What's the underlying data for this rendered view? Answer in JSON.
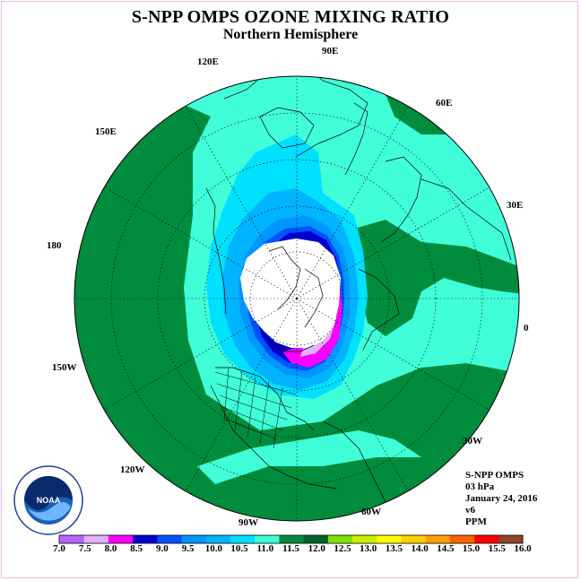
{
  "title": "S-NPP OMPS OZONE MIXING RATIO",
  "subtitle": "Northern Hemisphere",
  "longitude_labels": [
    {
      "text": "90E"
    },
    {
      "text": "60E"
    },
    {
      "text": "30E"
    },
    {
      "text": "0"
    },
    {
      "text": "30W"
    },
    {
      "text": "60W"
    },
    {
      "text": "90W"
    },
    {
      "text": "120W"
    },
    {
      "text": "150W"
    },
    {
      "text": "180"
    },
    {
      "text": "150E"
    },
    {
      "text": "120E"
    }
  ],
  "info": {
    "instrument": "S-NPP OMPS",
    "level": "03 hPa",
    "date": "January 24, 2016",
    "version": "v6",
    "units": "PPM"
  },
  "logo_text": "NOAA",
  "colorbar": {
    "ticks": [
      "7.0",
      "7.5",
      "8.0",
      "8.5",
      "9.0",
      "9.5",
      "10.0",
      "10.5",
      "11.0",
      "11.5",
      "12.0",
      "12.5",
      "13.0",
      "13.5",
      "14.0",
      "14.5",
      "15.0",
      "15.5",
      "16.0"
    ],
    "colors": [
      "#b266ff",
      "#e0b0ff",
      "#ff00ff",
      "#0000cc",
      "#0050ff",
      "#0096ff",
      "#00b4ff",
      "#00e0ff",
      "#40ffd8",
      "#008c3c",
      "#006428",
      "#80e000",
      "#c8f000",
      "#ffff00",
      "#ffd000",
      "#ffa000",
      "#ff6400",
      "#ff0000",
      "#8c4628"
    ]
  },
  "map_colors": {
    "dark_green": "#008c3c",
    "aquamarine": "#40ffd8",
    "cyan": "#00e0ff",
    "sky": "#00b4ff",
    "blue": "#0096ff",
    "deep_blue": "#0050ff",
    "navy": "#0000cc",
    "magenta": "#ff00ff",
    "lilac": "#e0b0ff",
    "polar_night": "#ffffff"
  }
}
